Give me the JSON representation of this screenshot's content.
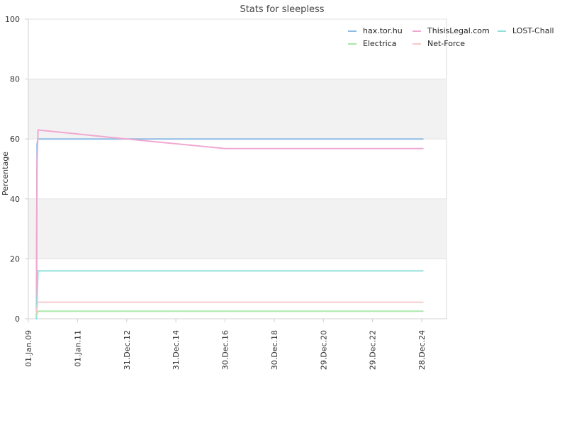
{
  "chart_data": {
    "type": "line",
    "title": "Stats for sleepless",
    "xlabel": "",
    "ylabel": "Percentage",
    "ylim": [
      0,
      100
    ],
    "y_ticks": [
      0,
      20,
      40,
      60,
      80,
      100
    ],
    "x_ticks": [
      "01.Jan.09",
      "01.Jan.11",
      "31.Dec.12",
      "31.Dec.14",
      "30.Dec.16",
      "30.Dec.18",
      "29.Dec.20",
      "29.Dec.22",
      "28.Dec.24"
    ],
    "xlim": [
      "2009-01-01",
      "2025-12-31"
    ],
    "grid": "alternating horizontal bands",
    "legend_position": "top-right",
    "series": [
      {
        "name": "hax.tor.hu",
        "color": "#8fbce6",
        "points": [
          [
            "2009-05-01",
            0
          ],
          [
            "2009-05-10",
            58
          ],
          [
            "2009-05-20",
            60
          ],
          [
            "2025-01-15",
            60
          ]
        ]
      },
      {
        "name": "ThisisLegal.com",
        "color": "#f0a8d0",
        "points": [
          [
            "2009-05-01",
            2
          ],
          [
            "2009-05-10",
            52
          ],
          [
            "2009-05-25",
            63
          ],
          [
            "2013-01-01",
            60
          ],
          [
            "2017-01-01",
            56.8
          ],
          [
            "2025-01-15",
            56.8
          ]
        ]
      },
      {
        "name": "LOST-Chall",
        "color": "#8fe0d8",
        "points": [
          [
            "2009-05-01",
            0
          ],
          [
            "2009-05-10",
            6
          ],
          [
            "2009-05-25",
            16
          ],
          [
            "2025-01-15",
            16
          ]
        ]
      },
      {
        "name": "Electrica",
        "color": "#a8e8a8",
        "points": [
          [
            "2009-05-01",
            1
          ],
          [
            "2009-05-20",
            2.5
          ],
          [
            "2025-01-15",
            2.5
          ]
        ]
      },
      {
        "name": "Net-Force",
        "color": "#f8c8cc",
        "points": [
          [
            "2009-05-01",
            2
          ],
          [
            "2009-05-20",
            5.5
          ],
          [
            "2025-01-15",
            5.5
          ]
        ]
      }
    ]
  }
}
